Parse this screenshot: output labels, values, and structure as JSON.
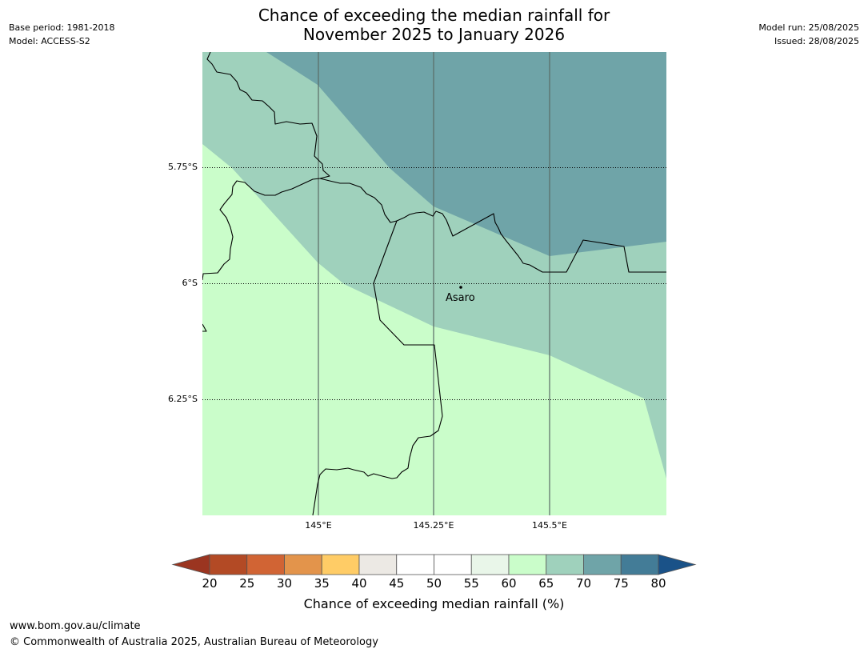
{
  "header": {
    "title_line1": "Chance of exceeding the median rainfall for",
    "title_line2": "November 2025 to January 2026",
    "base_period": "Base period: 1981-2018",
    "model": "Model: ACCESS-S2",
    "model_run": "Model run: 25/08/2025",
    "issued": "Issued: 28/08/2025"
  },
  "map": {
    "lat_labels": [
      "5.75°S",
      "6°S",
      "6.25°S"
    ],
    "lon_labels": [
      "145°E",
      "145.25°E",
      "145.5°E"
    ],
    "place": {
      "name": "Asaro"
    },
    "fill_colors": {
      "55-60": "#e9f6e9",
      "60-65": "#cafdca",
      "65-70": "#9fd1bc",
      "70-75": "#6fa4a8"
    }
  },
  "colorbar": {
    "ticks": [
      "20",
      "25",
      "30",
      "35",
      "40",
      "45",
      "50",
      "55",
      "60",
      "65",
      "70",
      "75",
      "80"
    ],
    "under_color": "#9b3520",
    "over_color": "#1a5288",
    "colors": [
      "#b34a25",
      "#d16434",
      "#e3944b",
      "#ffcc66",
      "#ece9e4",
      "#ffffff",
      "#ffffff",
      "#e9f6e9",
      "#cafdca",
      "#9fd1bc",
      "#6fa4a8",
      "#437c97"
    ],
    "label": "Chance of exceeding median rainfall (%)"
  },
  "footer": {
    "url": "www.bom.gov.au/climate",
    "copyright": "© Commonwealth of Australia 2025, Australian Bureau of Meteorology"
  }
}
